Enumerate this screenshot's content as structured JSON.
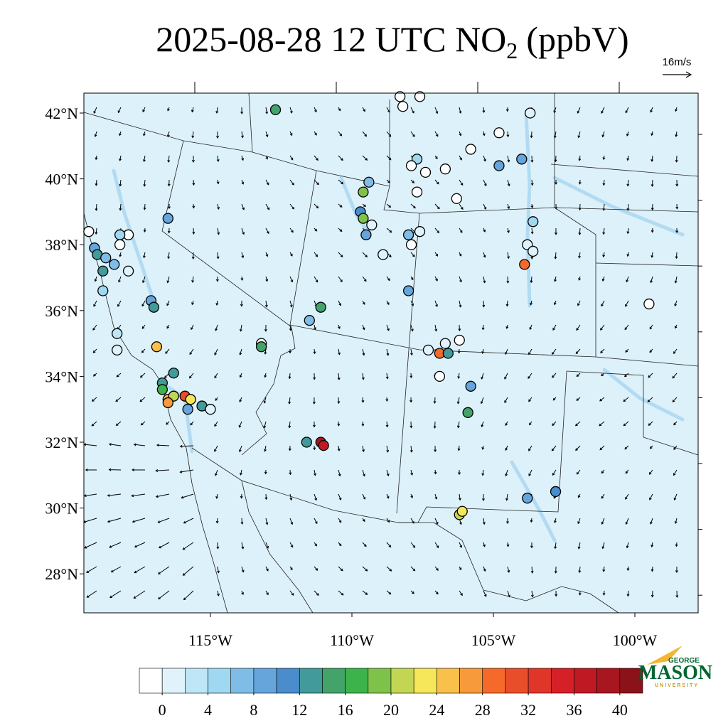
{
  "title": {
    "text": "2025-08-28 12 UTC NO",
    "subscript": "2",
    "unit": "(ppbV)"
  },
  "wind_reference": "16m/s",
  "lat_labels": [
    {
      "value": 42,
      "label": "42°N"
    },
    {
      "value": 40,
      "label": "40°N"
    },
    {
      "value": 38,
      "label": "38°N"
    },
    {
      "value": 36,
      "label": "36°N"
    },
    {
      "value": 34,
      "label": "34°N"
    },
    {
      "value": 32,
      "label": "32°N"
    },
    {
      "value": 30,
      "label": "30°N"
    },
    {
      "value": 28,
      "label": "28°N"
    }
  ],
  "lon_labels": [
    {
      "value": -115,
      "label": "115°W"
    },
    {
      "value": -110,
      "label": "110°W"
    },
    {
      "value": -105,
      "label": "105°W"
    },
    {
      "value": -100,
      "label": "100°W"
    }
  ],
  "colorbar": {
    "ticks": [
      0,
      4,
      8,
      12,
      16,
      20,
      24,
      28,
      32,
      36,
      40
    ],
    "colors": [
      "#ffffff",
      "#e0f3fb",
      "#bfe6f7",
      "#a0d8f2",
      "#80bde6",
      "#66a5db",
      "#4a8ccc",
      "#429a9a",
      "#44a36b",
      "#3cb44b",
      "#7fc24a",
      "#c2d654",
      "#f5e65a",
      "#f9c04a",
      "#f79a3c",
      "#f56a2a",
      "#e94e2a",
      "#e0362a",
      "#d62028",
      "#bf1a24",
      "#a8161f",
      "#8c121a"
    ]
  },
  "stations": [
    {
      "lon": -112.7,
      "lat": 42.1,
      "value": 16
    },
    {
      "lon": -108.3,
      "lat": 42.5,
      "value": 0
    },
    {
      "lon": -108.2,
      "lat": 42.2,
      "value": 0
    },
    {
      "lon": -119.3,
      "lat": 38.4,
      "value": 0
    },
    {
      "lon": -117.9,
      "lat": 38.3,
      "value": 0
    },
    {
      "lon": -118.2,
      "lat": 38.3,
      "value": 6
    },
    {
      "lon": -118.2,
      "lat": 38.0,
      "value": 0
    },
    {
      "lon": -119.1,
      "lat": 37.9,
      "value": 10
    },
    {
      "lon": -119.0,
      "lat": 37.7,
      "value": 14
    },
    {
      "lon": -118.7,
      "lat": 37.6,
      "value": 8
    },
    {
      "lon": -118.4,
      "lat": 37.4,
      "value": 8
    },
    {
      "lon": -118.8,
      "lat": 37.2,
      "value": 14
    },
    {
      "lon": -117.9,
      "lat": 37.2,
      "value": 2
    },
    {
      "lon": -118.8,
      "lat": 36.6,
      "value": 6
    },
    {
      "lon": -117.1,
      "lat": 36.3,
      "value": 10
    },
    {
      "lon": -117.0,
      "lat": 36.1,
      "value": 14
    },
    {
      "lon": -118.3,
      "lat": 35.3,
      "value": 4
    },
    {
      "lon": -118.3,
      "lat": 34.8,
      "value": 2
    },
    {
      "lon": -116.9,
      "lat": 34.9,
      "value": 26
    },
    {
      "lon": -116.5,
      "lat": 38.8,
      "value": 10
    },
    {
      "lon": -116.3,
      "lat": 34.1,
      "value": 14
    },
    {
      "lon": -116.7,
      "lat": 33.8,
      "value": 14
    },
    {
      "lon": -116.7,
      "lat": 33.6,
      "value": 18
    },
    {
      "lon": -116.5,
      "lat": 33.3,
      "value": 26
    },
    {
      "lon": -116.3,
      "lat": 33.4,
      "value": 22
    },
    {
      "lon": -115.9,
      "lat": 33.4,
      "value": 32
    },
    {
      "lon": -115.7,
      "lat": 33.3,
      "value": 24
    },
    {
      "lon": -116.5,
      "lat": 33.2,
      "value": 28
    },
    {
      "lon": -115.8,
      "lat": 33.0,
      "value": 10
    },
    {
      "lon": -115.3,
      "lat": 33.1,
      "value": 14
    },
    {
      "lon": -115.0,
      "lat": 33.0,
      "value": 2
    },
    {
      "lon": -111.6,
      "lat": 32.0,
      "value": 14
    },
    {
      "lon": -111.1,
      "lat": 32.0,
      "value": 40
    },
    {
      "lon": -111.0,
      "lat": 31.9,
      "value": 38
    },
    {
      "lon": -111.1,
      "lat": 36.1,
      "value": 16
    },
    {
      "lon": -111.5,
      "lat": 35.7,
      "value": 8
    },
    {
      "lon": -113.2,
      "lat": 35.0,
      "value": 0
    },
    {
      "lon": -113.2,
      "lat": 34.9,
      "value": 16
    },
    {
      "lon": -109.4,
      "lat": 39.9,
      "value": 8
    },
    {
      "lon": -109.6,
      "lat": 39.6,
      "value": 20
    },
    {
      "lon": -109.7,
      "lat": 39.0,
      "value": 12
    },
    {
      "lon": -109.6,
      "lat": 38.8,
      "value": 20
    },
    {
      "lon": -109.3,
      "lat": 38.6,
      "value": 2
    },
    {
      "lon": -109.5,
      "lat": 38.3,
      "value": 10
    },
    {
      "lon": -108.9,
      "lat": 37.7,
      "value": 2
    },
    {
      "lon": -108.0,
      "lat": 36.6,
      "value": 10
    },
    {
      "lon": -108.0,
      "lat": 38.3,
      "value": 8
    },
    {
      "lon": -107.6,
      "lat": 38.4,
      "value": 2
    },
    {
      "lon": -107.9,
      "lat": 38.0,
      "value": 0
    },
    {
      "lon": -107.6,
      "lat": 42.5,
      "value": 0
    },
    {
      "lon": -107.7,
      "lat": 40.6,
      "value": 6
    },
    {
      "lon": -107.9,
      "lat": 40.4,
      "value": 0
    },
    {
      "lon": -107.4,
      "lat": 40.2,
      "value": 0
    },
    {
      "lon": -107.7,
      "lat": 39.6,
      "value": 0
    },
    {
      "lon": -106.7,
      "lat": 40.3,
      "value": 0
    },
    {
      "lon": -106.3,
      "lat": 39.4,
      "value": 0
    },
    {
      "lon": -105.8,
      "lat": 40.9,
      "value": 0
    },
    {
      "lon": -104.8,
      "lat": 41.4,
      "value": 0
    },
    {
      "lon": -104.8,
      "lat": 40.4,
      "value": 10
    },
    {
      "lon": -104.0,
      "lat": 40.6,
      "value": 10
    },
    {
      "lon": -103.7,
      "lat": 42.0,
      "value": 2
    },
    {
      "lon": -103.8,
      "lat": 38.0,
      "value": 2
    },
    {
      "lon": -103.6,
      "lat": 37.8,
      "value": 2
    },
    {
      "lon": -103.9,
      "lat": 37.4,
      "value": 30
    },
    {
      "lon": -103.6,
      "lat": 38.7,
      "value": 6
    },
    {
      "lon": -107.3,
      "lat": 34.8,
      "value": 2
    },
    {
      "lon": -106.9,
      "lat": 34.7,
      "value": 30
    },
    {
      "lon": -106.6,
      "lat": 34.7,
      "value": 14
    },
    {
      "lon": -106.7,
      "lat": 35.0,
      "value": 2
    },
    {
      "lon": -106.2,
      "lat": 35.1,
      "value": 0
    },
    {
      "lon": -106.9,
      "lat": 34.0,
      "value": 0
    },
    {
      "lon": -105.8,
      "lat": 33.7,
      "value": 10
    },
    {
      "lon": -105.9,
      "lat": 32.9,
      "value": 16
    },
    {
      "lon": -103.8,
      "lat": 30.3,
      "value": 10
    },
    {
      "lon": -102.8,
      "lat": 30.5,
      "value": 12
    },
    {
      "lon": -106.2,
      "lat": 29.8,
      "value": 22
    },
    {
      "lon": -106.1,
      "lat": 29.9,
      "value": 24
    },
    {
      "lon": -99.5,
      "lat": 36.2,
      "value": 0
    }
  ],
  "logo": {
    "top": "GEORGE",
    "main": "MASON",
    "bottom": "UNIVERSITY"
  }
}
